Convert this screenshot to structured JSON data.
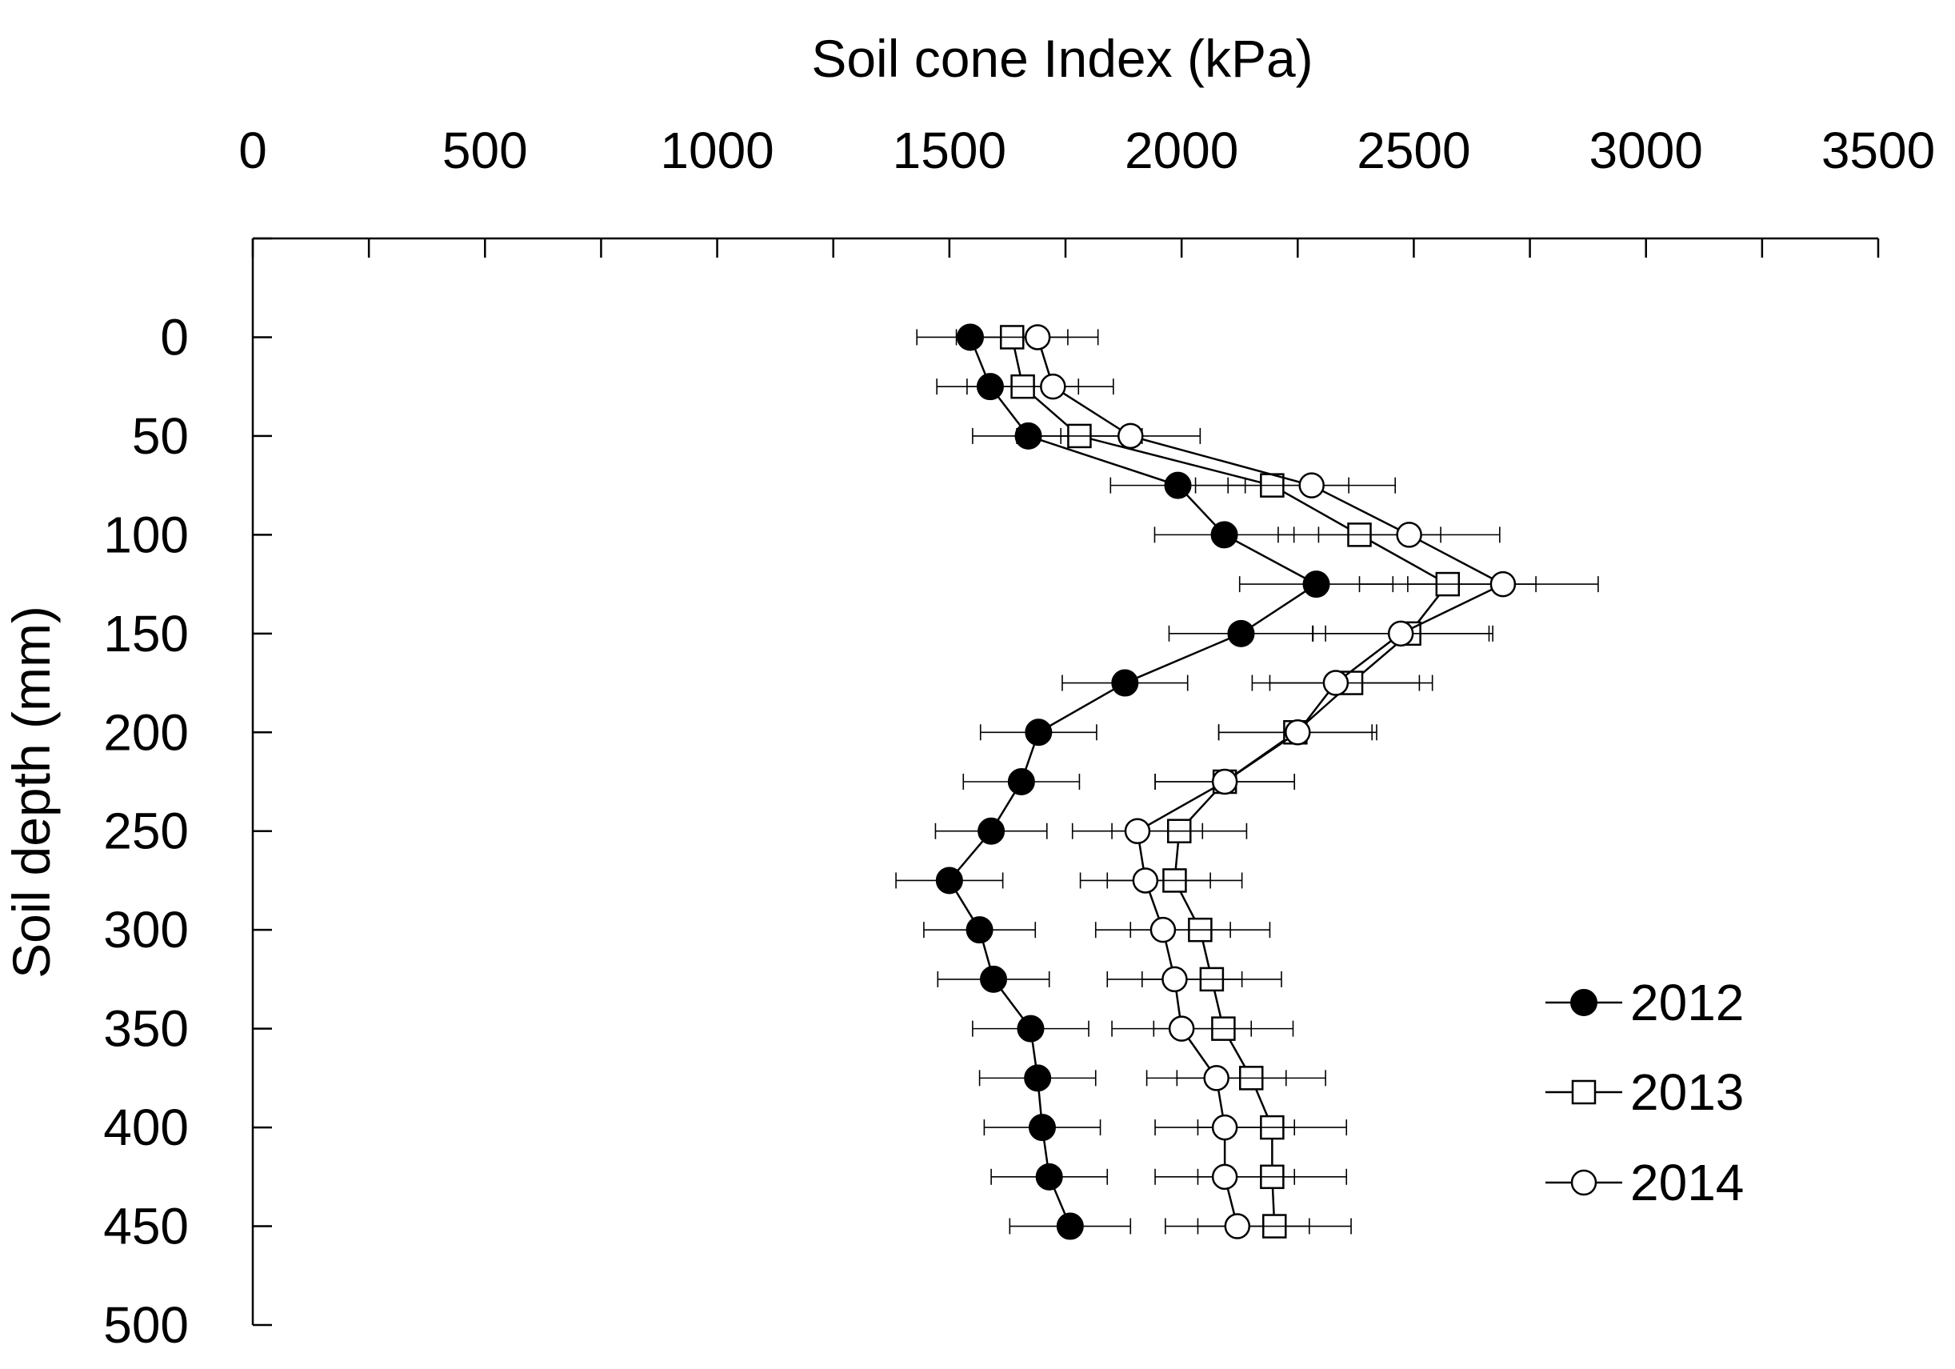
{
  "chart_data": {
    "type": "scatter",
    "title": "",
    "xlabel": "Soil cone Index (kPa)",
    "ylabel": "Soil depth (mm)",
    "xlim": [
      0,
      3500
    ],
    "ylim": [
      0,
      500
    ],
    "x_axis_position": "top",
    "y_axis_reversed": true,
    "x_ticks": [
      "0",
      "500",
      "1000",
      "1500",
      "2000",
      "2500",
      "3000",
      "3500"
    ],
    "y_ticks": [
      "0",
      "50",
      "100",
      "150",
      "200",
      "250",
      "300",
      "350",
      "400",
      "450",
      "500"
    ],
    "grid": false,
    "legend_position": "bottom-right",
    "series": [
      {
        "name": "2012",
        "marker": "filled-circle",
        "color": "#000000",
        "depth": [
          0,
          25,
          50,
          75,
          100,
          125,
          150,
          175,
          200,
          225,
          250,
          275,
          300,
          325,
          350,
          375,
          400,
          425,
          450
        ],
        "values": [
          1545,
          1588,
          1670,
          1992,
          2092,
          2290,
          2128,
          1878,
          1692,
          1655,
          1590,
          1500,
          1565,
          1595,
          1675,
          1690,
          1700,
          1715,
          1760
        ],
        "error": [
          115,
          115,
          120,
          145,
          150,
          165,
          155,
          135,
          125,
          125,
          120,
          115,
          120,
          120,
          125,
          125,
          125,
          125,
          130
        ]
      },
      {
        "name": "2013",
        "marker": "open-square",
        "color": "#000000",
        "depth": [
          0,
          25,
          50,
          75,
          100,
          125,
          150,
          175,
          200,
          225,
          250,
          275,
          300,
          325,
          350,
          375,
          400,
          425,
          450
        ],
        "values": [
          1635,
          1658,
          1780,
          2195,
          2383,
          2573,
          2490,
          2365,
          2245,
          2093,
          1995,
          1985,
          2040,
          2065,
          2090,
          2150,
          2195,
          2195,
          2200
        ],
        "error": [
          120,
          120,
          135,
          165,
          175,
          190,
          180,
          175,
          165,
          150,
          145,
          145,
          150,
          150,
          150,
          160,
          160,
          160,
          165
        ]
      },
      {
        "name": "2014",
        "marker": "open-circle",
        "color": "#000000",
        "depth": [
          0,
          25,
          50,
          75,
          100,
          125,
          150,
          175,
          200,
          225,
          250,
          275,
          300,
          325,
          350,
          375,
          400,
          425,
          450
        ],
        "values": [
          1690,
          1723,
          1890,
          2280,
          2490,
          2692,
          2472,
          2332,
          2250,
          2093,
          1905,
          1922,
          1960,
          1985,
          2000,
          2075,
          2093,
          2093,
          2120
        ],
        "error": [
          130,
          130,
          150,
          180,
          195,
          205,
          190,
          180,
          170,
          150,
          140,
          140,
          145,
          145,
          150,
          150,
          150,
          150,
          155
        ]
      }
    ]
  }
}
